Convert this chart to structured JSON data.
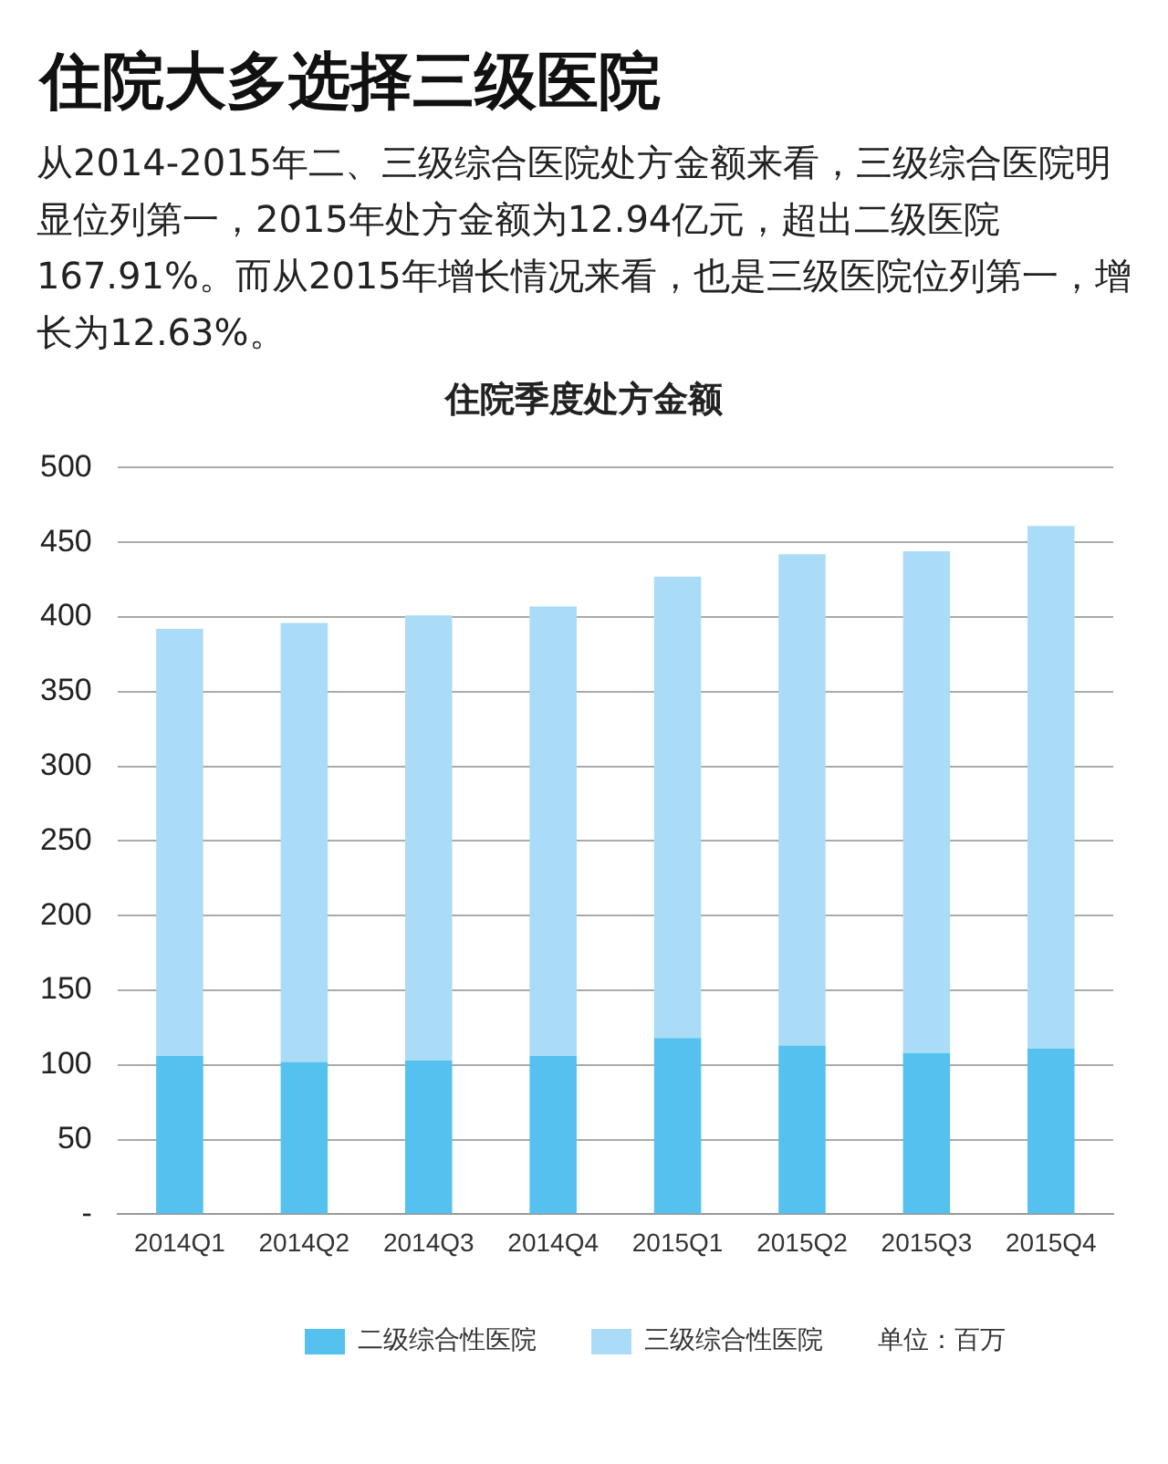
{
  "chart_data": {
    "type": "bar",
    "title": "住院大多选择三级医院",
    "subtitle": "住院季度处方金额",
    "annotations": [
      "从2014-2015年二、三级综合医院处方金额来看，三级综合医院明显位列第一，2015年处方金额为12.94亿元，超出二级医院167.91%。而从2015年增长情况来看，也是三级医院位列第一，增长为12.63%。",
      "单位：百万"
    ],
    "categories": [
      "2014Q1",
      "2014Q2",
      "2014Q3",
      "2014Q4",
      "2015Q1",
      "2015Q2",
      "2015Q3",
      "2015Q4"
    ],
    "stacked": true,
    "series": [
      {
        "name": "二级综合性医院",
        "color": "#55c1ee",
        "values": [
          106,
          102,
          103,
          106,
          118,
          113,
          108,
          111
        ]
      },
      {
        "name": "三级综合性医院",
        "color": "#aadcf7",
        "values": [
          286,
          294,
          298,
          301,
          309,
          329,
          336,
          350
        ]
      }
    ],
    "ylim": [
      0,
      500
    ],
    "yticks": [
      {
        "value": 0,
        "label": "-"
      },
      50,
      100,
      150,
      200,
      250,
      300,
      350,
      400,
      450,
      500
    ],
    "grid": "y",
    "legend": "bottom"
  }
}
